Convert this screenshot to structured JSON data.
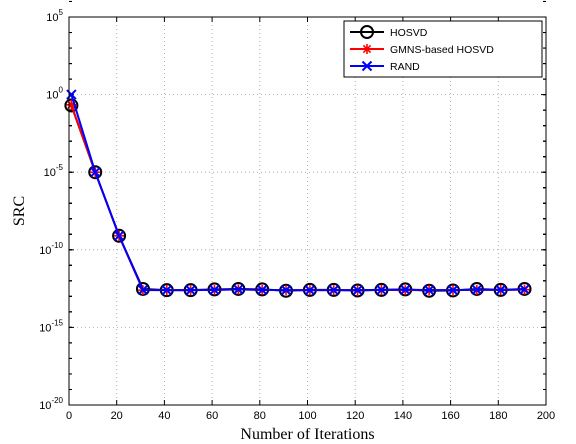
{
  "chart_data": {
    "type": "line",
    "title": "",
    "xlabel": "Number of Iterations",
    "ylabel": "SRC",
    "xlim": [
      0,
      200
    ],
    "ylim": [
      1e-20,
      100000.0
    ],
    "yscale": "log",
    "grid": true,
    "legend_position": "top-right",
    "x_ticks": [
      "0",
      "20",
      "40",
      "60",
      "80",
      "100",
      "120",
      "140",
      "160",
      "180",
      "200"
    ],
    "x_tick_values": [
      0,
      20,
      40,
      60,
      80,
      100,
      120,
      140,
      160,
      180,
      200
    ],
    "y_ticks": [
      {
        "value": 100000.0,
        "base": "10",
        "exp": "5"
      },
      {
        "value": 1.0,
        "base": "10",
        "exp": "0"
      },
      {
        "value": 1e-05,
        "base": "10",
        "exp": "-5"
      },
      {
        "value": 1e-10,
        "base": "10",
        "exp": "-10"
      },
      {
        "value": 1e-15,
        "base": "10",
        "exp": "-15"
      },
      {
        "value": 1e-20,
        "base": "10",
        "exp": "-20"
      }
    ],
    "x": [
      1,
      11,
      21,
      31,
      41,
      51,
      61,
      71,
      81,
      91,
      101,
      111,
      121,
      131,
      141,
      151,
      161,
      171,
      181,
      191
    ],
    "series": [
      {
        "name": "HOSVD",
        "color": "#000000",
        "marker": "circle",
        "values": [
          0.2,
          1e-05,
          8e-10,
          3e-13,
          2.5e-13,
          2.5e-13,
          2.8e-13,
          3e-13,
          2.8e-13,
          2.3e-13,
          2.6e-13,
          2.6e-13,
          2.4e-13,
          2.6e-13,
          2.8e-13,
          2.3e-13,
          2.4e-13,
          3e-13,
          2.6e-13,
          3e-13
        ]
      },
      {
        "name": "GMNS-based HOSVD",
        "color": "#ff0000",
        "marker": "star",
        "values": [
          0.22,
          1e-05,
          8e-10,
          2.5e-13,
          2.5e-13,
          2.5e-13,
          2.6e-13,
          2.8e-13,
          2.6e-13,
          2.5e-13,
          2.5e-13,
          2.5e-13,
          2.5e-13,
          2.6e-13,
          2.5e-13,
          2.5e-13,
          2.5e-13,
          2.6e-13,
          2.6e-13,
          2.7e-13
        ]
      },
      {
        "name": "RAND",
        "color": "#0000ff",
        "marker": "x",
        "values": [
          1.0,
          1e-05,
          8e-10,
          2.6e-13,
          2.5e-13,
          2.5e-13,
          2.6e-13,
          2.8e-13,
          2.6e-13,
          2.5e-13,
          2.5e-13,
          2.5e-13,
          2.5e-13,
          2.6e-13,
          2.7e-13,
          2.5e-13,
          2.5e-13,
          2.7e-13,
          2.6e-13,
          2.8e-13
        ]
      }
    ]
  }
}
